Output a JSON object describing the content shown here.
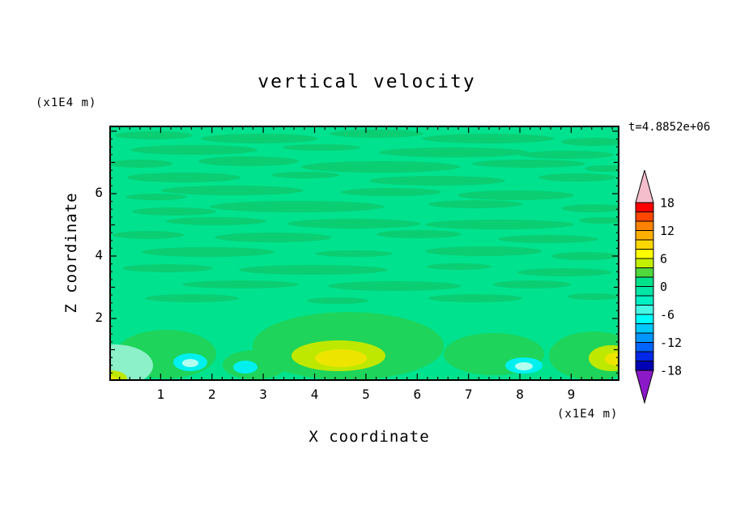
{
  "figure": {
    "title": "vertical velocity",
    "timestamp": "t=4.8852e+06",
    "x_axis": {
      "label": "X coordinate",
      "unit": "(x1E4 m)",
      "tick_labels": [
        "1",
        "2",
        "3",
        "4",
        "5",
        "6",
        "7",
        "8",
        "9"
      ]
    },
    "y_axis": {
      "label": "Z coordinate",
      "unit": "(x1E4 m)",
      "tick_labels": [
        "2",
        "4",
        "6"
      ]
    }
  },
  "chart_data": {
    "type": "heatmap",
    "title": "vertical velocity",
    "xlabel": "X coordinate (x1E4 m)",
    "ylabel": "Z coordinate (x1E4 m)",
    "x_range": [
      0,
      10
    ],
    "y_range": [
      0,
      8.2
    ],
    "x_ticks": [
      1,
      2,
      3,
      4,
      5,
      6,
      7,
      8,
      9
    ],
    "y_ticks": [
      2,
      4,
      6
    ],
    "time_annotation": "t=4.8852e+06",
    "colorbar": {
      "tick_labels": [
        "18",
        "12",
        "6",
        "0",
        "-6",
        "-12",
        "-18"
      ],
      "level_step": 2,
      "segment_colors_top_to_bottom": [
        "#FF0000",
        "#FF4600",
        "#FF8200",
        "#FFAF00",
        "#FFD700",
        "#FFFF00",
        "#C3F000",
        "#50D73C",
        "#00E18C",
        "#00E6A5",
        "#00EFC3",
        "#46FAE6",
        "#00FFFF",
        "#00C8FF",
        "#0096FF",
        "#0064FF",
        "#0028E6",
        "#0000B4"
      ],
      "above_range_color": "#F5BECC",
      "below_range_color": "#8C19C8"
    },
    "pattern_description": "Field is almost everywhere in the 0 to 2 band (spring green) with thin horizontal streaks of the adjacent band; in the lowest layer (z < 2) there are pockets reaching +6/+8 (yellow-green and yellow, near x=4.5 and x=9.8) and down to -6/-8 (cyan patches near x=1.5, x=2.6 and x=8.1)."
  },
  "plot_art": {
    "base_color": "#00E28E",
    "streak_color": "#0BCD72",
    "palette": {
      "g3": "#1ED45A",
      "yg": "#BEE800",
      "yellow": "#EDE500",
      "cyan": "#00F0F0",
      "lightcyan": "#B4FFF0",
      "mint": "#8CF0C8"
    },
    "streaks": [
      [
        55,
        12,
        48,
        5
      ],
      [
        185,
        16,
        72,
        6
      ],
      [
        330,
        10,
        58,
        5
      ],
      [
        468,
        16,
        82,
        6
      ],
      [
        598,
        20,
        40,
        5
      ],
      [
        105,
        30,
        78,
        6
      ],
      [
        262,
        27,
        48,
        4
      ],
      [
        425,
        33,
        92,
        6
      ],
      [
        565,
        36,
        58,
        5
      ],
      [
        38,
        47,
        40,
        5
      ],
      [
        172,
        44,
        62,
        6
      ],
      [
        335,
        51,
        98,
        7
      ],
      [
        518,
        47,
        70,
        5
      ],
      [
        615,
        53,
        28,
        4
      ],
      [
        92,
        64,
        70,
        6
      ],
      [
        242,
        61,
        42,
        4
      ],
      [
        405,
        68,
        84,
        6
      ],
      [
        578,
        64,
        48,
        5
      ],
      [
        152,
        80,
        88,
        6
      ],
      [
        348,
        82,
        62,
        5
      ],
      [
        502,
        86,
        72,
        6
      ],
      [
        58,
        88,
        38,
        4
      ],
      [
        232,
        100,
        108,
        7
      ],
      [
        452,
        97,
        58,
        5
      ],
      [
        598,
        102,
        40,
        5
      ],
      [
        80,
        106,
        52,
        5
      ],
      [
        132,
        118,
        62,
        5
      ],
      [
        302,
        121,
        82,
        6
      ],
      [
        482,
        122,
        92,
        6
      ],
      [
        608,
        117,
        28,
        4
      ],
      [
        48,
        135,
        44,
        5
      ],
      [
        202,
        138,
        72,
        6
      ],
      [
        382,
        134,
        52,
        5
      ],
      [
        542,
        140,
        62,
        5
      ],
      [
        122,
        156,
        82,
        6
      ],
      [
        302,
        158,
        48,
        4
      ],
      [
        462,
        155,
        72,
        6
      ],
      [
        588,
        161,
        42,
        5
      ],
      [
        72,
        176,
        56,
        5
      ],
      [
        252,
        178,
        92,
        6
      ],
      [
        432,
        174,
        40,
        4
      ],
      [
        562,
        181,
        58,
        5
      ],
      [
        162,
        196,
        72,
        5
      ],
      [
        352,
        198,
        82,
        6
      ],
      [
        522,
        196,
        48,
        5
      ],
      [
        102,
        213,
        58,
        5
      ],
      [
        282,
        216,
        38,
        4
      ],
      [
        452,
        213,
        58,
        5
      ],
      [
        598,
        211,
        32,
        4
      ]
    ],
    "blobs": [
      [
        "g3",
        70,
        282,
        62,
        30
      ],
      [
        "g3",
        295,
        272,
        118,
        42
      ],
      [
        "g3",
        475,
        282,
        62,
        26
      ],
      [
        "g3",
        598,
        284,
        55,
        30
      ],
      [
        "g3",
        180,
        295,
        40,
        18
      ],
      [
        "yg",
        283,
        284,
        58,
        19
      ],
      [
        "yellow",
        286,
        287,
        32,
        11
      ],
      [
        "yg",
        620,
        287,
        28,
        16
      ],
      [
        "yellow",
        626,
        288,
        14,
        8
      ],
      [
        "mint",
        6,
        296,
        48,
        26
      ],
      [
        "yg",
        0,
        312,
        22,
        10
      ],
      [
        "yellow",
        0,
        314,
        10,
        5
      ],
      [
        "cyan",
        100,
        292,
        21,
        11
      ],
      [
        "cyan",
        168,
        298,
        15,
        8
      ],
      [
        "cyan",
        512,
        296,
        23,
        10
      ],
      [
        "lightcyan",
        100,
        293,
        10,
        5
      ],
      [
        "lightcyan",
        512,
        297,
        11,
        5
      ]
    ]
  }
}
